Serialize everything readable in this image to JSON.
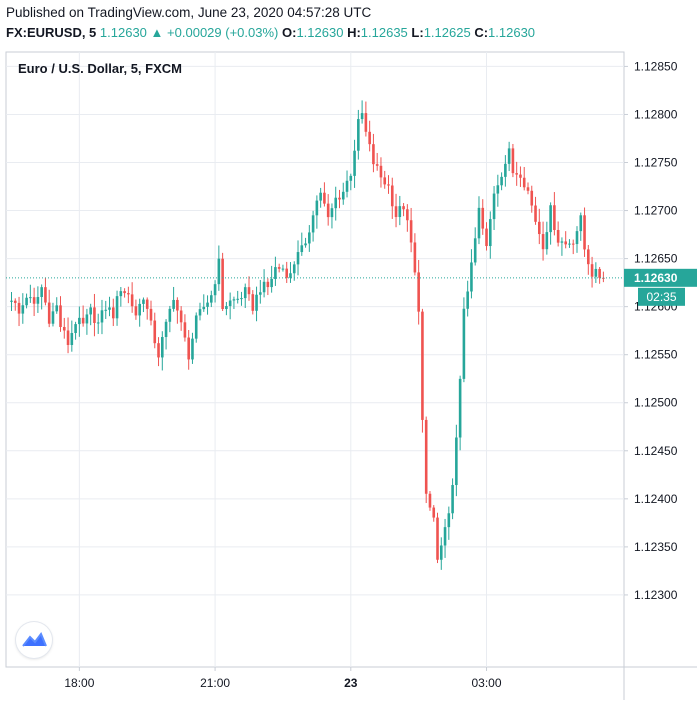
{
  "header": {
    "published": "Published on TradingView.com, June 23, 2020 04:57:28 UTC",
    "symbol": "FX:EURUSD, 5",
    "last": "1.12630",
    "change": "+0.00029 (+0.03%)",
    "o_label": "O:",
    "o_value": "1.12630",
    "h_label": "H:",
    "h_value": "1.12635",
    "l_label": "L:",
    "l_value": "1.12625",
    "c_label": "C:",
    "c_value": "1.12630"
  },
  "colors": {
    "up": "#26a69a",
    "down": "#ef5350",
    "grid": "#e9ecf1",
    "axis": "#7d8590",
    "price_line": "#26a69a"
  },
  "chart_data": {
    "type": "candlestick",
    "title": "Euro / U.S. Dollar, 5, FXCM",
    "price_axis": {
      "min": 1.12225,
      "max": 1.12865,
      "ticks": [
        "1.12850",
        "1.12800",
        "1.12750",
        "1.12700",
        "1.12650",
        "1.12600",
        "1.12550",
        "1.12500",
        "1.12450",
        "1.12400",
        "1.12350",
        "1.12300"
      ]
    },
    "time_axis": {
      "ticks": [
        {
          "label": "18:00",
          "bar": 18,
          "bold": false
        },
        {
          "label": "21:00",
          "bar": 54,
          "bold": false
        },
        {
          "label": "23",
          "bar": 90,
          "bold": true
        },
        {
          "label": "03:00",
          "bar": 126,
          "bold": false
        }
      ]
    },
    "last_price": {
      "value": 1.1263,
      "label": "1.12630",
      "countdown": "02:35"
    },
    "close_path": [
      [
        0,
        1.1261
      ],
      [
        2,
        1.12592
      ],
      [
        4,
        1.12612
      ],
      [
        6,
        1.126
      ],
      [
        8,
        1.1262
      ],
      [
        10,
        1.12588
      ],
      [
        12,
        1.126
      ],
      [
        13,
        1.1258
      ],
      [
        15,
        1.12562
      ],
      [
        17,
        1.12585
      ],
      [
        19,
        1.1258
      ],
      [
        21,
        1.12595
      ],
      [
        23,
        1.12582
      ],
      [
        25,
        1.126
      ],
      [
        27,
        1.12592
      ],
      [
        29,
        1.1262
      ],
      [
        31,
        1.12612
      ],
      [
        33,
        1.12592
      ],
      [
        35,
        1.12612
      ],
      [
        37,
        1.1258
      ],
      [
        39,
        1.1255
      ],
      [
        41,
        1.1258
      ],
      [
        43,
        1.12612
      ],
      [
        45,
        1.1258
      ],
      [
        47,
        1.1255
      ],
      [
        49,
        1.12585
      ],
      [
        51,
        1.126
      ],
      [
        53,
        1.12612
      ],
      [
        55,
        1.12645
      ],
      [
        56,
        1.126
      ],
      [
        58,
        1.12605
      ],
      [
        60,
        1.12608
      ],
      [
        62,
        1.12615
      ],
      [
        64,
        1.126
      ],
      [
        66,
        1.1262
      ],
      [
        68,
        1.1262
      ],
      [
        70,
        1.1264
      ],
      [
        72,
        1.1264
      ],
      [
        74,
        1.12632
      ],
      [
        76,
        1.1266
      ],
      [
        78,
        1.1266
      ],
      [
        80,
        1.127
      ],
      [
        82,
        1.1272
      ],
      [
        84,
        1.1269
      ],
      [
        86,
        1.12712
      ],
      [
        88,
        1.1272
      ],
      [
        90,
        1.1274
      ],
      [
        91,
        1.12765
      ],
      [
        92,
        1.1279
      ],
      [
        93,
        1.128
      ],
      [
        94,
        1.1278
      ],
      [
        96,
        1.1275
      ],
      [
        98,
        1.12735
      ],
      [
        100,
        1.12725
      ],
      [
        102,
        1.12695
      ],
      [
        104,
        1.12705
      ],
      [
        106,
        1.12665
      ],
      [
        108,
        1.126
      ],
      [
        109,
        1.1248
      ],
      [
        110,
        1.124
      ],
      [
        112,
        1.1238
      ],
      [
        113,
        1.12335
      ],
      [
        114,
        1.1235
      ],
      [
        116,
        1.1238
      ],
      [
        118,
        1.1246
      ],
      [
        119,
        1.1252
      ],
      [
        120,
        1.126
      ],
      [
        121,
        1.1262
      ],
      [
        122,
        1.1264
      ],
      [
        124,
        1.127
      ],
      [
        126,
        1.1266
      ],
      [
        128,
        1.1272
      ],
      [
        130,
        1.1274
      ],
      [
        132,
        1.1276
      ],
      [
        133,
        1.1274
      ],
      [
        135,
        1.1274
      ],
      [
        137,
        1.1272
      ],
      [
        139,
        1.1269
      ],
      [
        141,
        1.12665
      ],
      [
        143,
        1.127
      ],
      [
        145,
        1.1267
      ],
      [
        147,
        1.12665
      ],
      [
        149,
        1.1267
      ],
      [
        151,
        1.1269
      ],
      [
        152,
        1.1266
      ],
      [
        154,
        1.12635
      ],
      [
        156,
        1.12632
      ],
      [
        157,
        1.1263
      ]
    ]
  }
}
